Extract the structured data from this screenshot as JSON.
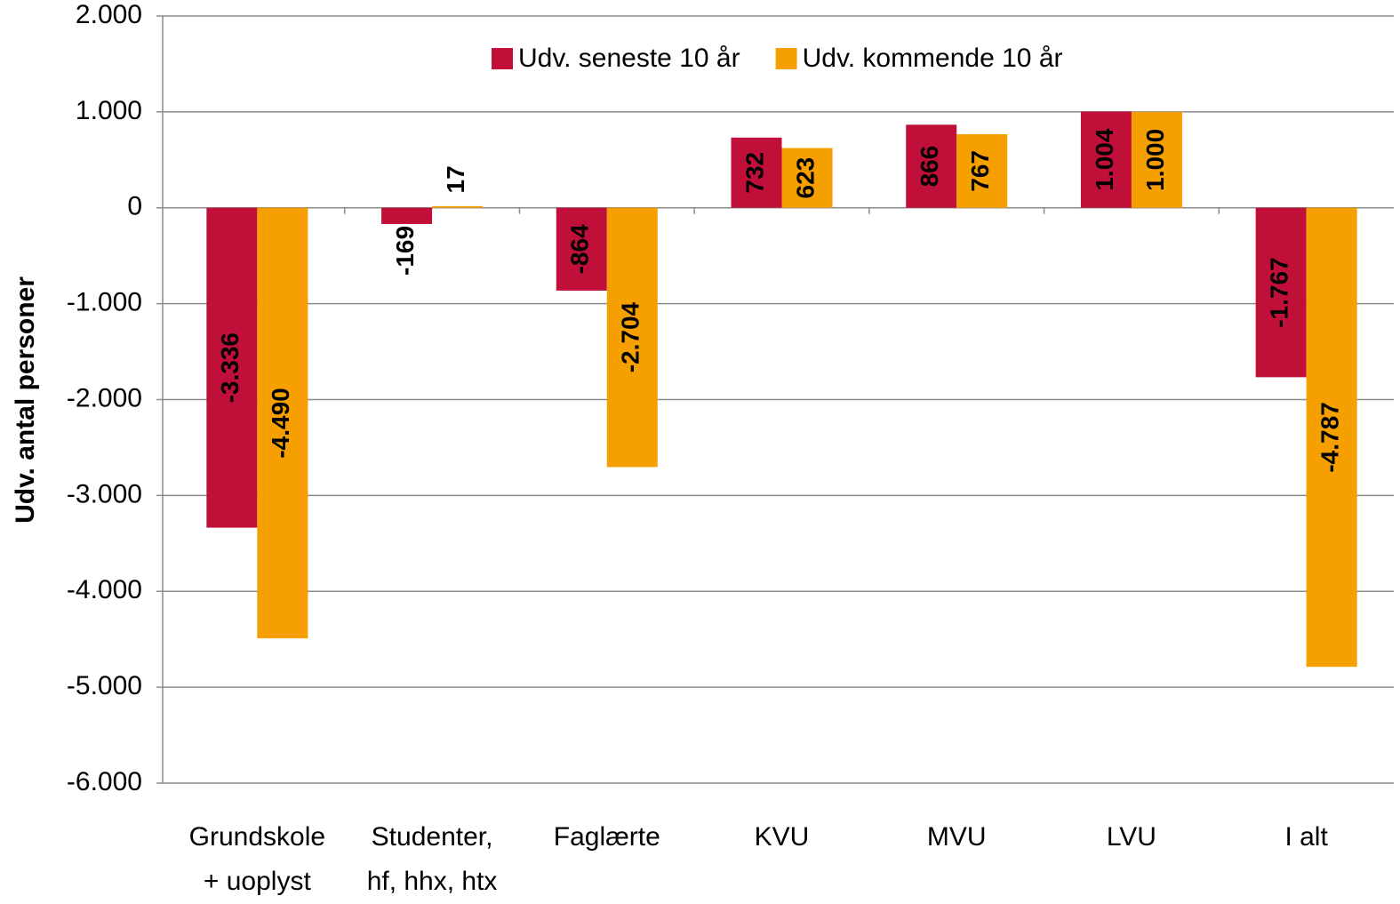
{
  "chart_data": {
    "type": "bar",
    "y_label": "Udv. antal personer",
    "categories": [
      [
        "Grundskole",
        "+ uoplyst"
      ],
      [
        "Studenter,",
        "hf, hhx, htx"
      ],
      [
        "Faglærte"
      ],
      [
        "KVU"
      ],
      [
        "MVU"
      ],
      [
        "LVU"
      ],
      [
        "I alt"
      ]
    ],
    "series": [
      {
        "name": "Udv. seneste 10 år",
        "color": "#c0103a",
        "values": [
          -3336,
          -169,
          -864,
          732,
          866,
          1004,
          -1767
        ],
        "value_labels": [
          "-3.336",
          "-169",
          "-864",
          "732",
          "866",
          "1.004",
          "-1.767"
        ]
      },
      {
        "name": "Udv. kommende 10 år",
        "color": "#f5a000",
        "values": [
          -4490,
          17,
          -2704,
          623,
          767,
          1000,
          -4787
        ],
        "value_labels": [
          "-4.490",
          "17",
          "-2.704",
          "623",
          "767",
          "1.000",
          "-4.787"
        ]
      }
    ],
    "ylim": [
      -6000,
      2000
    ],
    "yticks": [
      {
        "value": -6000,
        "label": "-6.000"
      },
      {
        "value": -5000,
        "label": "-5.000"
      },
      {
        "value": -4000,
        "label": "-4.000"
      },
      {
        "value": -3000,
        "label": "-3.000"
      },
      {
        "value": -2000,
        "label": "-2.000"
      },
      {
        "value": -1000,
        "label": "-1.000"
      },
      0,
      {
        "value": 1000,
        "label": "1.000"
      },
      {
        "value": 2000,
        "label": "2.000"
      }
    ],
    "grid": true,
    "legend": "top"
  }
}
